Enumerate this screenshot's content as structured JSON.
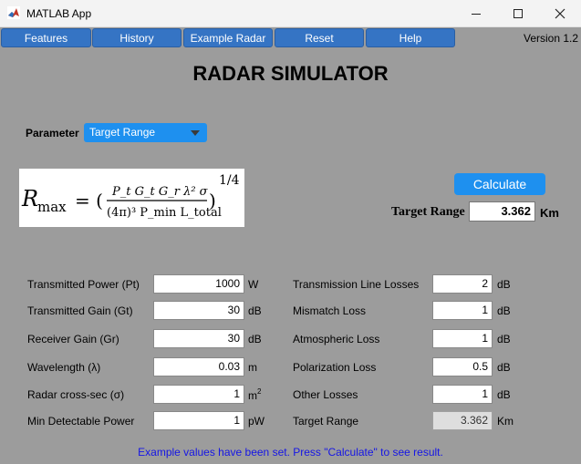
{
  "window": {
    "title": "MATLAB App",
    "controls": {
      "minimize_icon": "minimize-icon",
      "maximize_icon": "maximize-icon",
      "close_icon": "close-icon"
    }
  },
  "menu": {
    "items": [
      "Features",
      "History",
      "Example Radar",
      "Reset",
      "Help"
    ],
    "version": "Version 1.2"
  },
  "heading": "RADAR SIMULATOR",
  "parameter": {
    "label": "Parameter",
    "selected": "Target Range"
  },
  "equation": {
    "lhs": "R",
    "lhs_sub": "max",
    "numerator": "P_t G_t G_r λ² σ",
    "denominator": "(4π)³ P_min L_total",
    "exponent": "1/4"
  },
  "result": {
    "button_label": "Calculate",
    "label": "Target Range",
    "value": "3.362",
    "unit": "Km"
  },
  "left_fields": [
    {
      "label": "Transmitted Power (Pt)",
      "value": "1000",
      "unit": "W"
    },
    {
      "label": "Transmitted Gain (Gt)",
      "value": "30",
      "unit": "dB"
    },
    {
      "label": "Receiver Gain (Gr)",
      "value": "30",
      "unit": "dB"
    },
    {
      "label": "Wavelength (λ)",
      "value": "0.03",
      "unit": "m"
    },
    {
      "label": "Radar cross-sec (σ)",
      "value": "1",
      "unit": "m",
      "unit_sup": "2"
    },
    {
      "label": "Min Detectable Power",
      "value": "1",
      "unit": "pW"
    }
  ],
  "right_fields": [
    {
      "label": "Transmission Line Losses",
      "value": "2",
      "unit": "dB"
    },
    {
      "label": "Mismatch Loss",
      "value": "1",
      "unit": "dB"
    },
    {
      "label": "Atmospheric Loss",
      "value": "1",
      "unit": "dB"
    },
    {
      "label": "Polarization Loss",
      "value": "0.5",
      "unit": "dB"
    },
    {
      "label": "Other Losses",
      "value": "1",
      "unit": "dB"
    },
    {
      "label": "Target Range",
      "value": "3.362",
      "unit": "Km"
    }
  ],
  "status": "Example values have been set. Press \"Calculate\" to see result.",
  "colors": {
    "background": "#9c9c9c",
    "menu_button": "#3574c4",
    "accent_button": "#1e90ef",
    "status_text": "#1515e6"
  }
}
